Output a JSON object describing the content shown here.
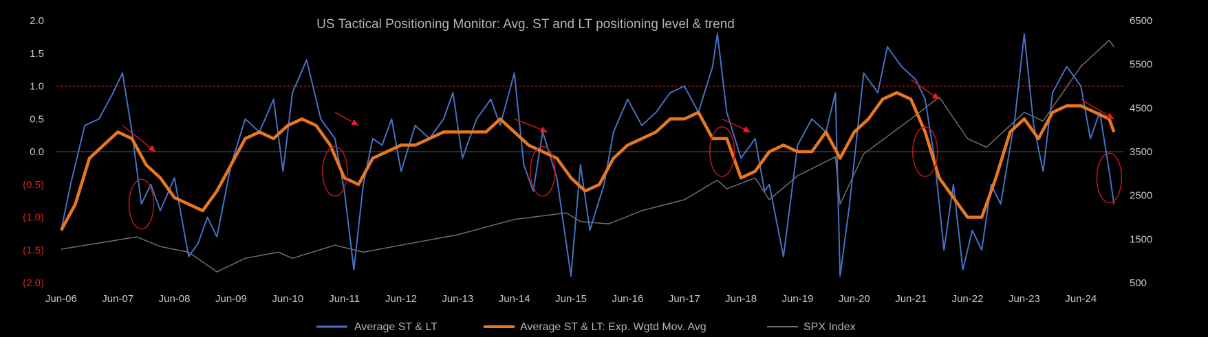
{
  "chart_data": {
    "type": "line",
    "title": "US Tactical Positioning Monitor: Avg. ST and LT positioning level  & trend",
    "ylim": [
      -2.0,
      2.0
    ],
    "y2lim": [
      500,
      6500
    ],
    "y_tick_labels": [
      {
        "v": 2.0,
        "label": "2.0",
        "neg": false
      },
      {
        "v": 1.5,
        "label": "1.5",
        "neg": false
      },
      {
        "v": 1.0,
        "label": "1.0",
        "neg": false
      },
      {
        "v": 0.5,
        "label": "0.5",
        "neg": false
      },
      {
        "v": 0.0,
        "label": "0.0",
        "neg": false
      },
      {
        "v": -0.5,
        "label": "(0.5)",
        "neg": true
      },
      {
        "v": -1.0,
        "label": "(1.0)",
        "neg": true
      },
      {
        "v": -1.5,
        "label": "(1.5)",
        "neg": true
      },
      {
        "v": -2.0,
        "label": "(2.0)",
        "neg": true
      }
    ],
    "y2_tick_labels": [
      {
        "v": 6500,
        "label": "6500"
      },
      {
        "v": 5500,
        "label": "5500"
      },
      {
        "v": 4500,
        "label": "4500"
      },
      {
        "v": 3500,
        "label": "3500"
      },
      {
        "v": 2500,
        "label": "2500"
      },
      {
        "v": 1500,
        "label": "1500"
      },
      {
        "v": 500,
        "label": "500"
      }
    ],
    "xlim": [
      "2006-05",
      "2025-03"
    ],
    "x_tick_labels": [
      "Jun-06",
      "Jun-07",
      "Jun-08",
      "Jun-09",
      "Jun-10",
      "Jun-11",
      "Jun-12",
      "Jun-13",
      "Jun-14",
      "Jun-15",
      "Jun-16",
      "Jun-17",
      "Jun-18",
      "Jun-19",
      "Jun-20",
      "Jun-21",
      "Jun-22",
      "Jun-23",
      "Jun-24"
    ],
    "reference_line": {
      "y": 1.0,
      "color": "#c0181a"
    },
    "series": [
      {
        "name": "Average ST & LT",
        "color": "#4472c4",
        "x": [
          "2006-06",
          "2006-08",
          "2006-11",
          "2007-02",
          "2007-05",
          "2007-07",
          "2007-09",
          "2007-11",
          "2008-01",
          "2008-03",
          "2008-06",
          "2008-09",
          "2008-11",
          "2009-01",
          "2009-03",
          "2009-06",
          "2009-09",
          "2009-12",
          "2010-03",
          "2010-05",
          "2010-07",
          "2010-10",
          "2011-01",
          "2011-04",
          "2011-06",
          "2011-08",
          "2011-10",
          "2011-12",
          "2012-02",
          "2012-04",
          "2012-06",
          "2012-09",
          "2012-12",
          "2013-03",
          "2013-05",
          "2013-07",
          "2013-10",
          "2014-01",
          "2014-03",
          "2014-06",
          "2014-08",
          "2014-10",
          "2014-12",
          "2015-03",
          "2015-06",
          "2015-08",
          "2015-10",
          "2016-01",
          "2016-03",
          "2016-06",
          "2016-09",
          "2016-12",
          "2017-03",
          "2017-06",
          "2017-09",
          "2017-12",
          "2018-01",
          "2018-03",
          "2018-06",
          "2018-09",
          "2018-11",
          "2018-12",
          "2019-03",
          "2019-06",
          "2019-09",
          "2019-12",
          "2020-02",
          "2020-03",
          "2020-05",
          "2020-08",
          "2020-11",
          "2021-01",
          "2021-04",
          "2021-07",
          "2021-09",
          "2021-11",
          "2022-01",
          "2022-03",
          "2022-05",
          "2022-07",
          "2022-09",
          "2022-11",
          "2023-01",
          "2023-04",
          "2023-06",
          "2023-08",
          "2023-10",
          "2023-12",
          "2024-03",
          "2024-06",
          "2024-08",
          "2024-10",
          "2024-12",
          "2025-01"
        ],
        "values": [
          -1.2,
          -0.5,
          0.4,
          0.5,
          0.9,
          1.2,
          0.3,
          -0.8,
          -0.5,
          -0.9,
          -0.4,
          -1.6,
          -1.4,
          -1.0,
          -1.3,
          -0.2,
          0.5,
          0.3,
          0.8,
          -0.3,
          0.9,
          1.4,
          0.5,
          0.2,
          -0.6,
          -1.8,
          -0.5,
          0.2,
          0.1,
          0.5,
          -0.3,
          0.4,
          0.2,
          0.5,
          0.9,
          -0.1,
          0.5,
          0.8,
          0.4,
          1.2,
          -0.2,
          -0.6,
          0.3,
          -0.4,
          -1.9,
          -0.2,
          -1.2,
          -0.5,
          0.3,
          0.8,
          0.4,
          0.6,
          0.9,
          1.0,
          0.6,
          1.3,
          1.8,
          0.6,
          -0.1,
          0.2,
          -0.6,
          -0.5,
          -1.6,
          0.1,
          0.5,
          0.3,
          0.9,
          -1.9,
          -0.8,
          1.2,
          0.9,
          1.6,
          1.3,
          1.1,
          0.8,
          -0.1,
          -1.5,
          -0.5,
          -1.8,
          -1.2,
          -1.5,
          -0.5,
          -0.8,
          0.5,
          1.8,
          0.4,
          -0.3,
          0.9,
          1.3,
          1.0,
          0.2,
          0.6,
          -0.3,
          -0.8
        ]
      },
      {
        "name": "Average ST & LT: Exp. Wgtd Mov. Avg",
        "color": "#e87722",
        "x": [
          "2006-06",
          "2006-09",
          "2006-12",
          "2007-03",
          "2007-06",
          "2007-09",
          "2007-12",
          "2008-03",
          "2008-06",
          "2008-09",
          "2008-12",
          "2009-03",
          "2009-06",
          "2009-09",
          "2009-12",
          "2010-03",
          "2010-06",
          "2010-09",
          "2010-12",
          "2011-03",
          "2011-06",
          "2011-09",
          "2011-12",
          "2012-03",
          "2012-06",
          "2012-09",
          "2012-12",
          "2013-03",
          "2013-06",
          "2013-09",
          "2013-12",
          "2014-03",
          "2014-06",
          "2014-09",
          "2014-12",
          "2015-03",
          "2015-06",
          "2015-09",
          "2015-12",
          "2016-03",
          "2016-06",
          "2016-09",
          "2016-12",
          "2017-03",
          "2017-06",
          "2017-09",
          "2017-12",
          "2018-03",
          "2018-06",
          "2018-09",
          "2018-12",
          "2019-03",
          "2019-06",
          "2019-09",
          "2019-12",
          "2020-03",
          "2020-06",
          "2020-09",
          "2020-12",
          "2021-03",
          "2021-06",
          "2021-09",
          "2021-12",
          "2022-03",
          "2022-06",
          "2022-09",
          "2022-12",
          "2023-03",
          "2023-06",
          "2023-09",
          "2023-12",
          "2024-03",
          "2024-06",
          "2024-09",
          "2024-12",
          "2025-01"
        ],
        "values": [
          -1.2,
          -0.8,
          -0.1,
          0.1,
          0.3,
          0.2,
          -0.2,
          -0.4,
          -0.7,
          -0.8,
          -0.9,
          -0.6,
          -0.2,
          0.2,
          0.3,
          0.2,
          0.4,
          0.5,
          0.4,
          0.1,
          -0.4,
          -0.5,
          -0.1,
          0.0,
          0.1,
          0.1,
          0.2,
          0.3,
          0.3,
          0.3,
          0.3,
          0.5,
          0.3,
          0.1,
          0.0,
          -0.1,
          -0.4,
          -0.6,
          -0.5,
          -0.1,
          0.1,
          0.2,
          0.3,
          0.5,
          0.5,
          0.6,
          0.2,
          0.2,
          -0.4,
          -0.3,
          0.0,
          0.1,
          0.0,
          0.0,
          0.3,
          -0.1,
          0.3,
          0.5,
          0.8,
          0.9,
          0.8,
          0.3,
          -0.4,
          -0.7,
          -1.0,
          -1.0,
          -0.4,
          0.3,
          0.5,
          0.2,
          0.6,
          0.7,
          0.7,
          0.6,
          0.5,
          0.3
        ]
      },
      {
        "name": "SPX Index",
        "color": "#707070",
        "axis": "right",
        "x": [
          "2006-06",
          "2007-06",
          "2007-10",
          "2008-03",
          "2008-09",
          "2009-03",
          "2009-09",
          "2010-04",
          "2010-07",
          "2011-04",
          "2011-10",
          "2012-06",
          "2013-06",
          "2014-06",
          "2015-05",
          "2015-08",
          "2016-02",
          "2016-09",
          "2017-06",
          "2018-01",
          "2018-03",
          "2018-09",
          "2018-12",
          "2019-06",
          "2020-02",
          "2020-03",
          "2020-08",
          "2021-06",
          "2021-12",
          "2022-06",
          "2022-10",
          "2023-06",
          "2023-10",
          "2024-06",
          "2024-12",
          "2025-01"
        ],
        "values": [
          1270,
          1480,
          1550,
          1330,
          1200,
          750,
          1060,
          1200,
          1060,
          1360,
          1200,
          1360,
          1600,
          1950,
          2100,
          1900,
          1850,
          2150,
          2400,
          2850,
          2650,
          2900,
          2400,
          2950,
          3380,
          2300,
          3450,
          4250,
          4750,
          3800,
          3600,
          4400,
          4200,
          5450,
          6050,
          5900
        ]
      }
    ],
    "annotations": {
      "red_ellipses": [
        {
          "x": "2007-11",
          "y": -0.8
        },
        {
          "x": "2011-04",
          "y": -0.3
        },
        {
          "x": "2014-12",
          "y": -0.3
        },
        {
          "x": "2018-02",
          "y": 0.0
        },
        {
          "x": "2021-09",
          "y": 0.0
        },
        {
          "x": "2024-12",
          "y": -0.4
        }
      ],
      "red_arrows": [
        {
          "from": [
            "2007-07",
            0.4
          ],
          "to": [
            "2008-02",
            0.0
          ]
        },
        {
          "from": [
            "2011-04",
            0.6
          ],
          "to": [
            "2011-09",
            0.4
          ]
        },
        {
          "from": [
            "2014-06",
            0.5
          ],
          "to": [
            "2015-01",
            0.3
          ]
        },
        {
          "from": [
            "2018-02",
            0.5
          ],
          "to": [
            "2018-08",
            0.3
          ]
        },
        {
          "from": [
            "2021-06",
            1.1
          ],
          "to": [
            "2021-12",
            0.8
          ]
        },
        {
          "from": [
            "2024-06",
            0.8
          ],
          "to": [
            "2025-01",
            0.5
          ]
        }
      ]
    },
    "legend_position": "bottom"
  }
}
